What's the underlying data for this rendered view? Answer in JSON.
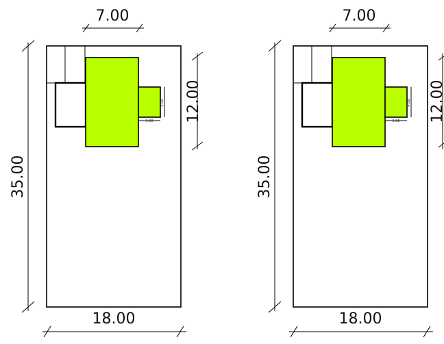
{
  "colors": {
    "highlight": "#b9ff00",
    "line": "#000000",
    "background": "#ffffff"
  },
  "plans": [
    {
      "top_dimension": "7.00",
      "left_dimension": "35.00",
      "right_dimension": "12.00",
      "bottom_dimension": "18.00",
      "small_width_dimension": "3.00",
      "small_height_dimension": "4.00"
    },
    {
      "top_dimension": "7.00",
      "left_dimension": "35.00",
      "right_dimension": "12.00",
      "bottom_dimension": "18.00",
      "small_width_dimension": "3.00",
      "small_height_dimension": "4.00"
    }
  ]
}
